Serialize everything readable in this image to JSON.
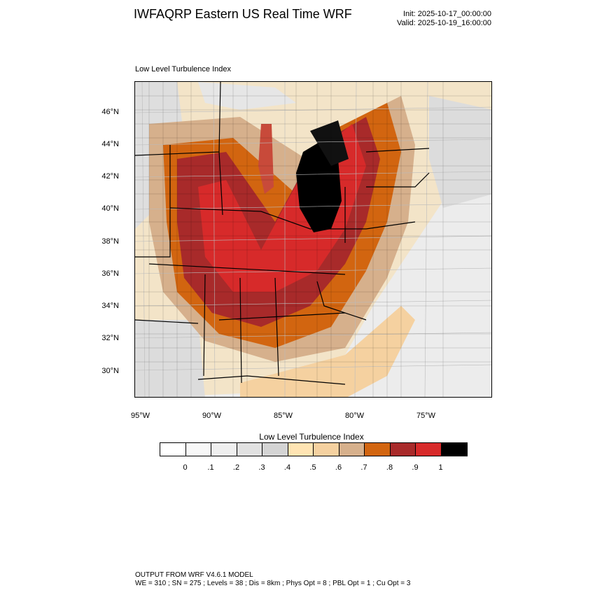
{
  "header": {
    "title": "IWFAQRP Eastern US Real Time WRF",
    "init": "Init: 2025-10-17_00:00:00",
    "valid": "Valid: 2025-10-19_16:00:00"
  },
  "map": {
    "panel_label": "Low Level Turbulence Index",
    "lat_labels": [
      "46°N",
      "44°N",
      "42°N",
      "40°N",
      "38°N",
      "36°N",
      "34°N",
      "32°N",
      "30°N"
    ],
    "lon_labels": [
      "95°W",
      "90°W",
      "85°W",
      "80°W",
      "75°W"
    ]
  },
  "colorbar": {
    "title": "Low Level Turbulence Index",
    "colors": [
      "#ffffff",
      "#f7f7f7",
      "#efefef",
      "#e1e1e1",
      "#d4d4d4",
      "#ffe4b3",
      "#f5d1a0",
      "#d6b08c",
      "#d26510",
      "#a82a2a",
      "#d72a2a",
      "#000000"
    ],
    "tick_labels": [
      "0",
      ".1",
      ".2",
      ".3",
      ".4",
      ".5",
      ".6",
      ".7",
      ".8",
      ".9",
      "1"
    ]
  },
  "footer": {
    "line1": "OUTPUT FROM WRF V4.6.1 MODEL",
    "line2": "WE = 310 ; SN = 275 ; Levels = 38 ; Dis = 8km ; Phys Opt = 8 ; PBL Opt = 1 ; Cu Opt = 3"
  }
}
